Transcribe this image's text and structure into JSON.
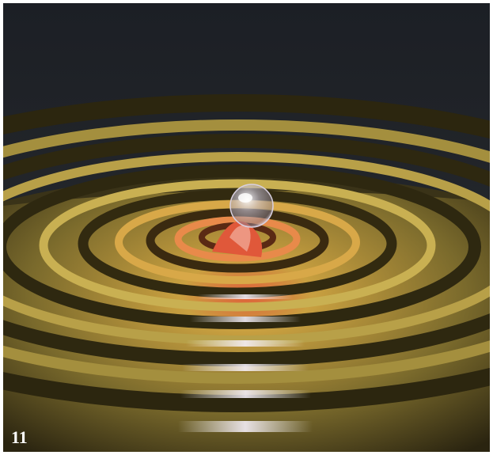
{
  "label": "11"
}
